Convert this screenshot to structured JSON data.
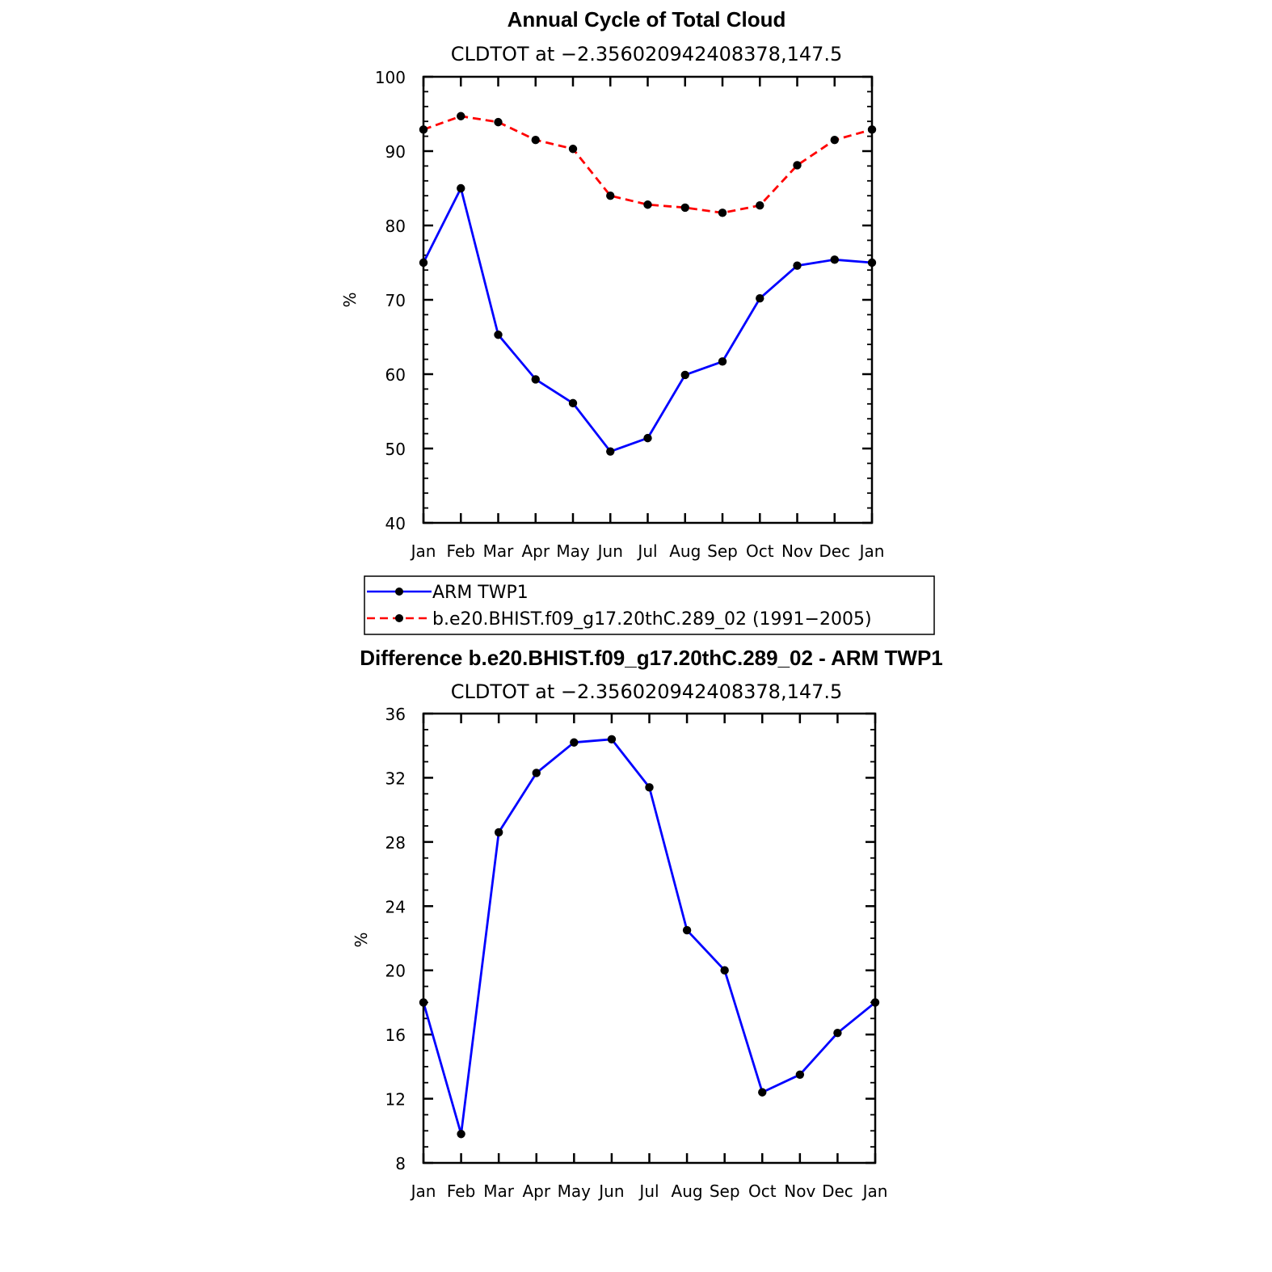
{
  "chart_data": [
    {
      "type": "line",
      "title": "Annual Cycle of Total Cloud",
      "subtitle": "CLDTOT at −2.356020942408378,147.5",
      "ylabel": "%",
      "xlabel": "",
      "categories": [
        "Jan",
        "Feb",
        "Mar",
        "Apr",
        "May",
        "Jun",
        "Jul",
        "Aug",
        "Sep",
        "Oct",
        "Nov",
        "Dec",
        "Jan"
      ],
      "ylim": [
        40,
        100
      ],
      "yticks": [
        "40",
        "50",
        "60",
        "70",
        "80",
        "90",
        "100"
      ],
      "series": [
        {
          "name": "ARM TWP1",
          "color": "#0000ff",
          "dash": "solid",
          "values": [
            75.0,
            85.0,
            65.3,
            59.3,
            56.1,
            49.6,
            51.4,
            59.9,
            61.7,
            70.2,
            74.6,
            75.4,
            75.0
          ]
        },
        {
          "name": "b.e20.BHIST.f09_g17.20thC.289_02 (1991−2005)",
          "color": "#ff0000",
          "dash": "dashed",
          "values": [
            92.9,
            94.7,
            93.9,
            91.5,
            90.3,
            84.0,
            82.8,
            82.4,
            81.7,
            82.7,
            88.1,
            91.5,
            92.9
          ]
        }
      ],
      "legend_position": "below"
    },
    {
      "type": "line",
      "title": "Difference b.e20.BHIST.f09_g17.20thC.289_02 - ARM TWP1",
      "subtitle": "CLDTOT at −2.356020942408378,147.5",
      "ylabel": "%",
      "xlabel": "",
      "categories": [
        "Jan",
        "Feb",
        "Mar",
        "Apr",
        "May",
        "Jun",
        "Jul",
        "Aug",
        "Sep",
        "Oct",
        "Nov",
        "Dec",
        "Jan"
      ],
      "ylim": [
        8,
        36
      ],
      "yticks": [
        "8",
        "12",
        "16",
        "20",
        "24",
        "28",
        "32",
        "36"
      ],
      "series": [
        {
          "color": "#0000ff",
          "dash": "solid",
          "values": [
            18.0,
            9.8,
            28.6,
            32.3,
            34.2,
            34.4,
            31.4,
            22.5,
            20.0,
            12.4,
            13.5,
            16.1,
            18.0
          ]
        }
      ]
    }
  ]
}
